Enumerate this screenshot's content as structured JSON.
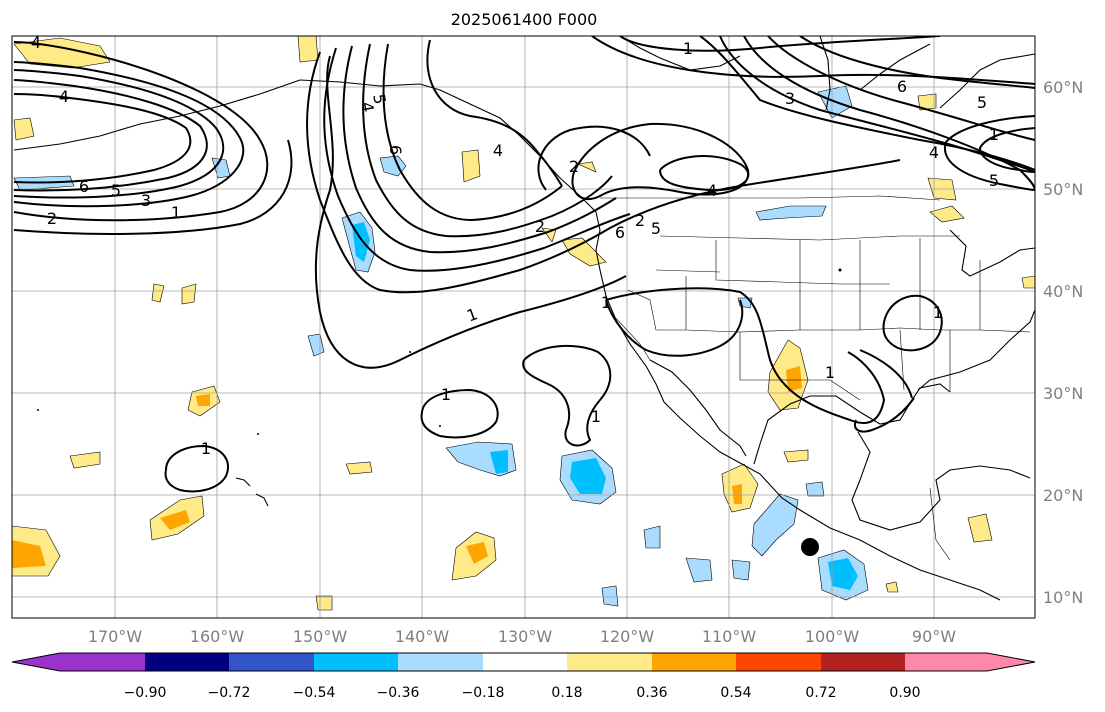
{
  "title": "2025061400 F000",
  "lon_ticks": [
    "170°W",
    "160°W",
    "150°W",
    "140°W",
    "130°W",
    "120°W",
    "110°W",
    "100°W",
    "90°W"
  ],
  "lat_ticks": [
    "60°N",
    "50°N",
    "40°N",
    "30°N",
    "20°N",
    "10°N"
  ],
  "colorbar": {
    "colors": [
      "#9933cc",
      "#000080",
      "#3355cc",
      "#00bfff",
      "#aadcff",
      "#ffffff",
      "#ffea88",
      "#ffa500",
      "#ff4500",
      "#b22222",
      "#ff88aa"
    ],
    "ticks": [
      "−0.90",
      "−0.72",
      "−0.54",
      "−0.36",
      "−0.18",
      "0.18",
      "0.36",
      "0.54",
      "0.72",
      "0.90"
    ]
  },
  "contour_labels": [
    "4",
    "4",
    "6",
    "5",
    "3",
    "2",
    "1",
    "1",
    "5",
    "4",
    "6",
    "1",
    "2",
    "4",
    "2",
    "6",
    "5",
    "2",
    "4",
    "1",
    "3",
    "5",
    "6",
    "4",
    "5",
    "1",
    "1",
    "1",
    "1",
    "1",
    "1"
  ],
  "marker": "black-dot"
}
